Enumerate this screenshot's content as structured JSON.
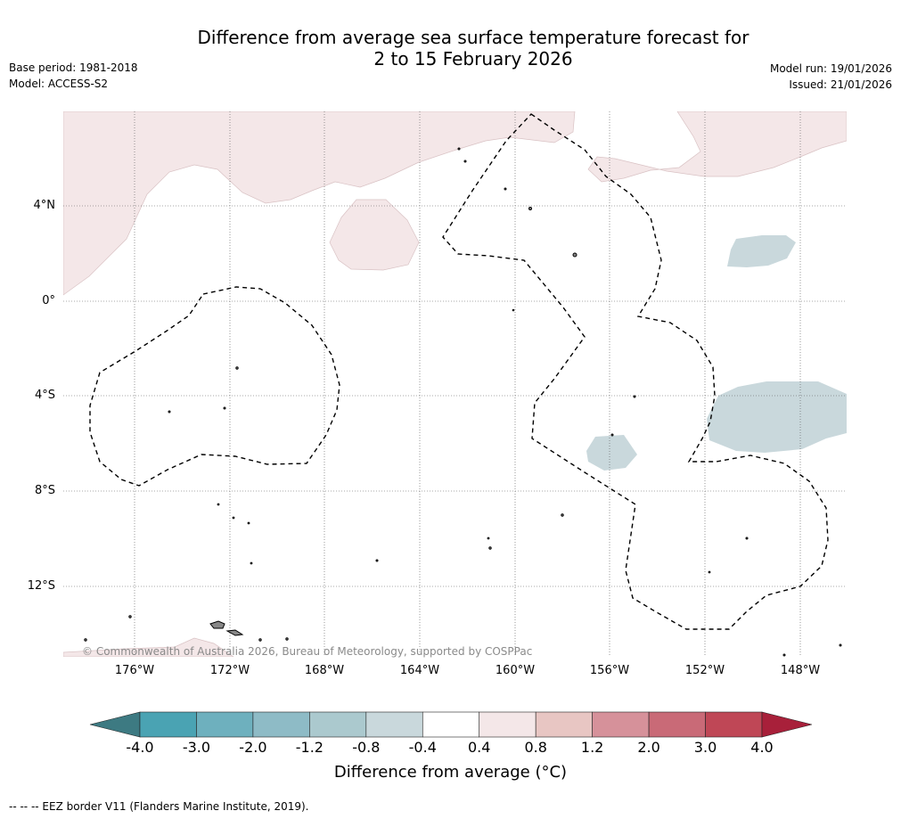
{
  "header": {
    "title_line1": "Difference from average sea surface temperature forecast for",
    "title_line2": "2 to 15 February 2026",
    "base_period": "Base period: 1981-2018",
    "model": "Model: ACCESS-S2",
    "model_run": "Model run: 19/01/2026",
    "issued": "Issued: 21/01/2026"
  },
  "map": {
    "lat_labels": [
      "4°N",
      "0°",
      "4°S",
      "8°S",
      "12°S"
    ],
    "lon_labels": [
      "176°W",
      "172°W",
      "168°W",
      "164°W",
      "160°W",
      "156°W",
      "152°W",
      "148°W"
    ],
    "copyright": "© Commonwealth of Australia 2026, Bureau of Meteorology, supported by COSPPac"
  },
  "colorbar": {
    "ticks": [
      "-4.0",
      "-3.0",
      "-2.0",
      "-1.2",
      "-0.8",
      "-0.4",
      "0.4",
      "0.8",
      "1.2",
      "2.0",
      "3.0",
      "4.0"
    ],
    "label": "Difference from average (°C)",
    "colors": [
      "#4aa3b3",
      "#6eb0be",
      "#8ebbc6",
      "#abc9ce",
      "#c9d8dc",
      "#ffffff",
      "#f4e7e8",
      "#e8c6c3",
      "#d6919a",
      "#c96a77",
      "#bf4756"
    ],
    "under_color": "#3d7a82",
    "over_color": "#a8203a"
  },
  "legend": {
    "eez_text": "--  --  -- EEZ border V11 (Flanders Marine Institute, 2019)."
  }
}
